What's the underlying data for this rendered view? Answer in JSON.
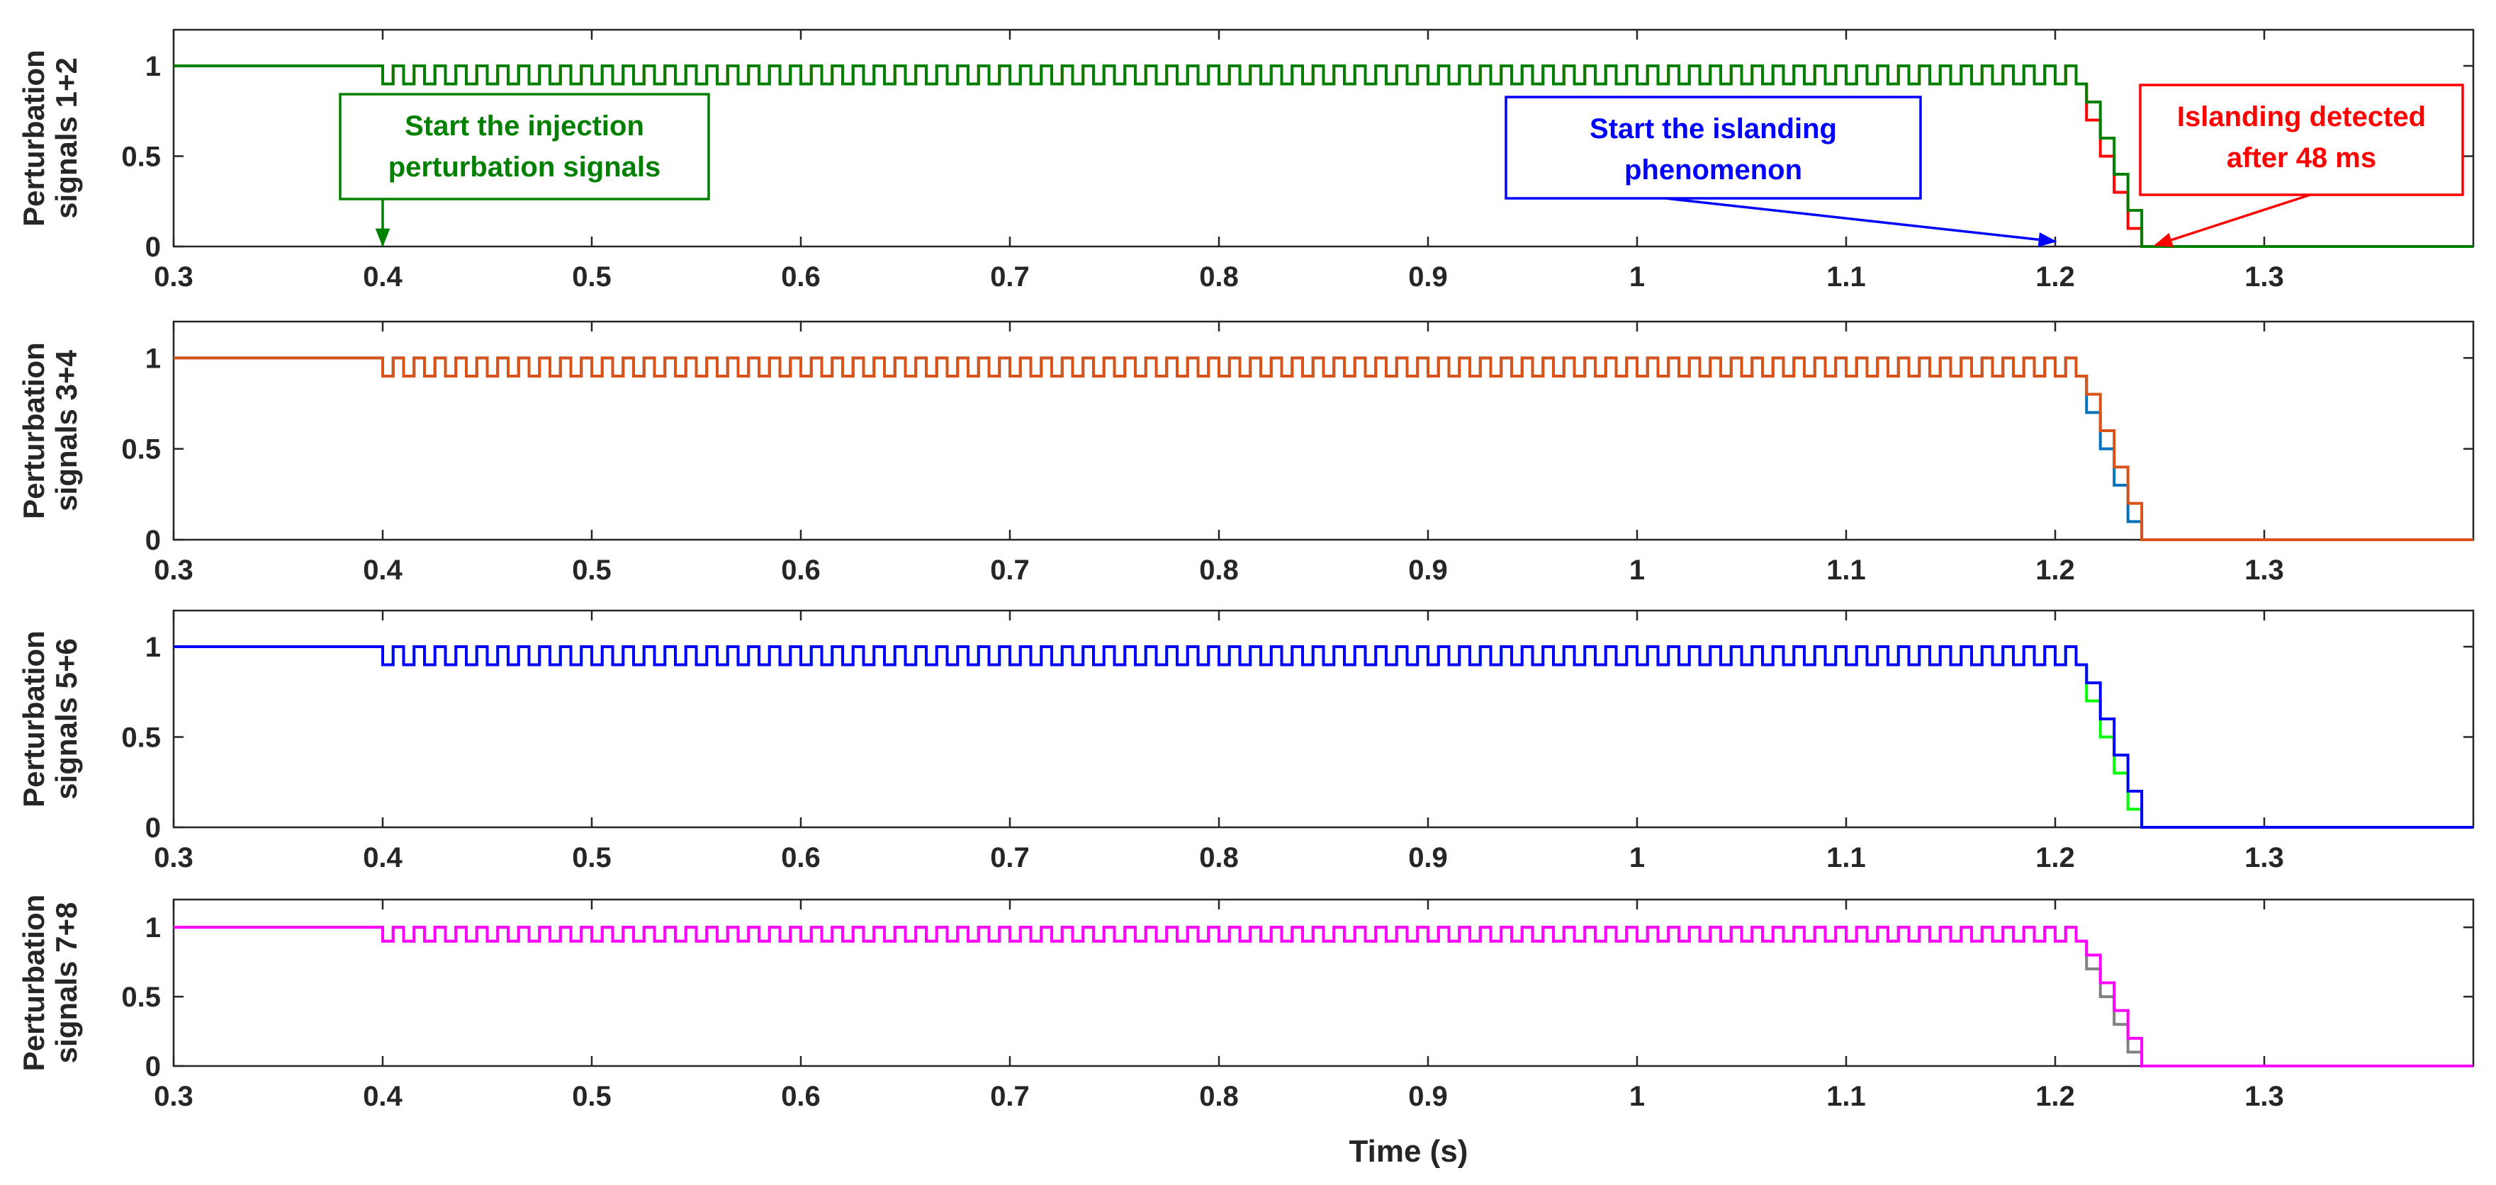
{
  "chart_data": {
    "type": "line",
    "step": true,
    "xlabel": "Time (s)",
    "xlim": [
      0.3,
      1.4
    ],
    "xticks": [
      0.3,
      0.4,
      0.5,
      0.6,
      0.7,
      0.8,
      0.9,
      1.0,
      1.1,
      1.2,
      1.3
    ],
    "xtick_labels": [
      "0.3",
      "0.4",
      "0.5",
      "0.6",
      "0.7",
      "0.8",
      "0.9",
      "1",
      "1.1",
      "1.2",
      "1.3"
    ],
    "ylim": [
      0,
      1.2
    ],
    "yticks": [
      0,
      0.5,
      1
    ],
    "ytick_labels": [
      "0",
      "0.5",
      "1"
    ],
    "signal_pattern": {
      "initial_level": 1,
      "injection_start": 0.4,
      "pulse_period": 0.01,
      "pulse_high": 1,
      "pulse_low": 0.9,
      "islanding_start": 1.2,
      "ramp_start": 1.215,
      "ramp_step_duration": 0.0066,
      "ramp_end": 1.248,
      "final_level": 0
    },
    "panels": [
      {
        "ylabel": [
          "Perturbation",
          "signals 1+2"
        ],
        "series": [
          {
            "name": "Perturbation signal 1",
            "color": "#ff0000",
            "phase": 0,
            "ramp_levels": [
              0.7,
              0.5,
              0.3,
              0.1,
              0
            ]
          },
          {
            "name": "Perturbation signal 2",
            "color": "#008000",
            "phase": 0.005,
            "ramp_levels": [
              0.8,
              0.6,
              0.4,
              0.2,
              0
            ]
          }
        ],
        "annotations": [
          {
            "lines": [
              "Start the injection",
              "perturbation signals"
            ],
            "color": "#008000",
            "target": [
              0.4,
              0
            ]
          },
          {
            "lines": [
              "Start the islanding",
              "phenomenon"
            ],
            "color": "#0000ff",
            "target": [
              1.2,
              0.02
            ]
          },
          {
            "lines": [
              "Islanding detected",
              "after 48 ms"
            ],
            "color": "#ff0000",
            "target": [
              1.248,
              0
            ]
          }
        ]
      },
      {
        "ylabel": [
          "Perturbation",
          "signals 3+4"
        ],
        "series": [
          {
            "name": "Perturbation signal 3",
            "color": "#0072bd",
            "phase": 0.005,
            "ramp_levels": [
              0.7,
              0.5,
              0.3,
              0.1,
              0
            ]
          },
          {
            "name": "Perturbation signal 4",
            "color": "#d95319",
            "phase": 0,
            "ramp_levels": [
              0.8,
              0.6,
              0.4,
              0.2,
              0
            ]
          }
        ],
        "annotations": []
      },
      {
        "ylabel": [
          "Perturbation",
          "signals 5+6"
        ],
        "series": [
          {
            "name": "Perturbation signal 5",
            "color": "#00ff00",
            "phase": 0.005,
            "ramp_levels": [
              0.7,
              0.5,
              0.3,
              0.1,
              0
            ]
          },
          {
            "name": "Perturbation signal 6",
            "color": "#0000ff",
            "phase": 0,
            "ramp_levels": [
              0.8,
              0.6,
              0.4,
              0.2,
              0
            ]
          }
        ],
        "annotations": []
      },
      {
        "ylabel": [
          "Perturbation",
          "signals 7+8"
        ],
        "series": [
          {
            "name": "Perturbation signal 7",
            "color": "#808080",
            "phase": 0.005,
            "ramp_levels": [
              0.7,
              0.5,
              0.3,
              0.1,
              0
            ]
          },
          {
            "name": "Perturbation signal 8",
            "color": "#ff00ff",
            "phase": 0,
            "ramp_levels": [
              0.8,
              0.6,
              0.4,
              0.2,
              0
            ]
          }
        ],
        "annotations": []
      }
    ]
  }
}
